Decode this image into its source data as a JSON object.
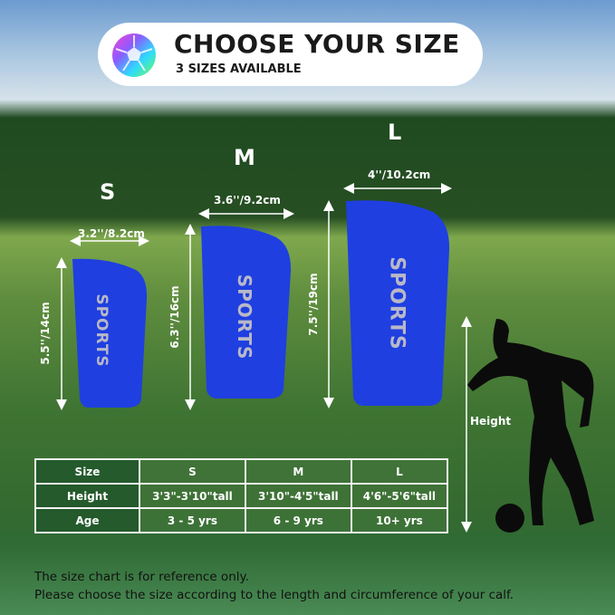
{
  "header": {
    "title": "CHOOSE YOUR SIZE",
    "subtitle": "3 SIZES AVAILABLE",
    "icon": "soccer-ball-icon"
  },
  "sizes": [
    {
      "label": "S",
      "width": "3.2''/8.2cm",
      "height": "5.5''/14cm",
      "print": "SPORTS"
    },
    {
      "label": "M",
      "width": "3.6''/9.2cm",
      "height": "6.3''/16cm",
      "print": "SPORTS"
    },
    {
      "label": "L",
      "width": "4''/10.2cm",
      "height": "7.5''/19cm",
      "print": "SPORTS"
    }
  ],
  "player": {
    "height_label": "Height"
  },
  "table": {
    "rows": [
      [
        "Size",
        "S",
        "M",
        "L"
      ],
      [
        "Height",
        "3'3\"-3'10\"tall",
        "3'10\"-4'5\"tall",
        "4'6\"-5'6\"tall"
      ],
      [
        "Age",
        "3 - 5 yrs",
        "6 - 9 yrs",
        "10+ yrs"
      ]
    ]
  },
  "footer": {
    "line1": "The size chart is for reference only.",
    "line2": "Please choose the size according to the length and circumference of your calf."
  },
  "colors": {
    "guard": "#1f3fe0",
    "table_header": "#245a2c"
  }
}
